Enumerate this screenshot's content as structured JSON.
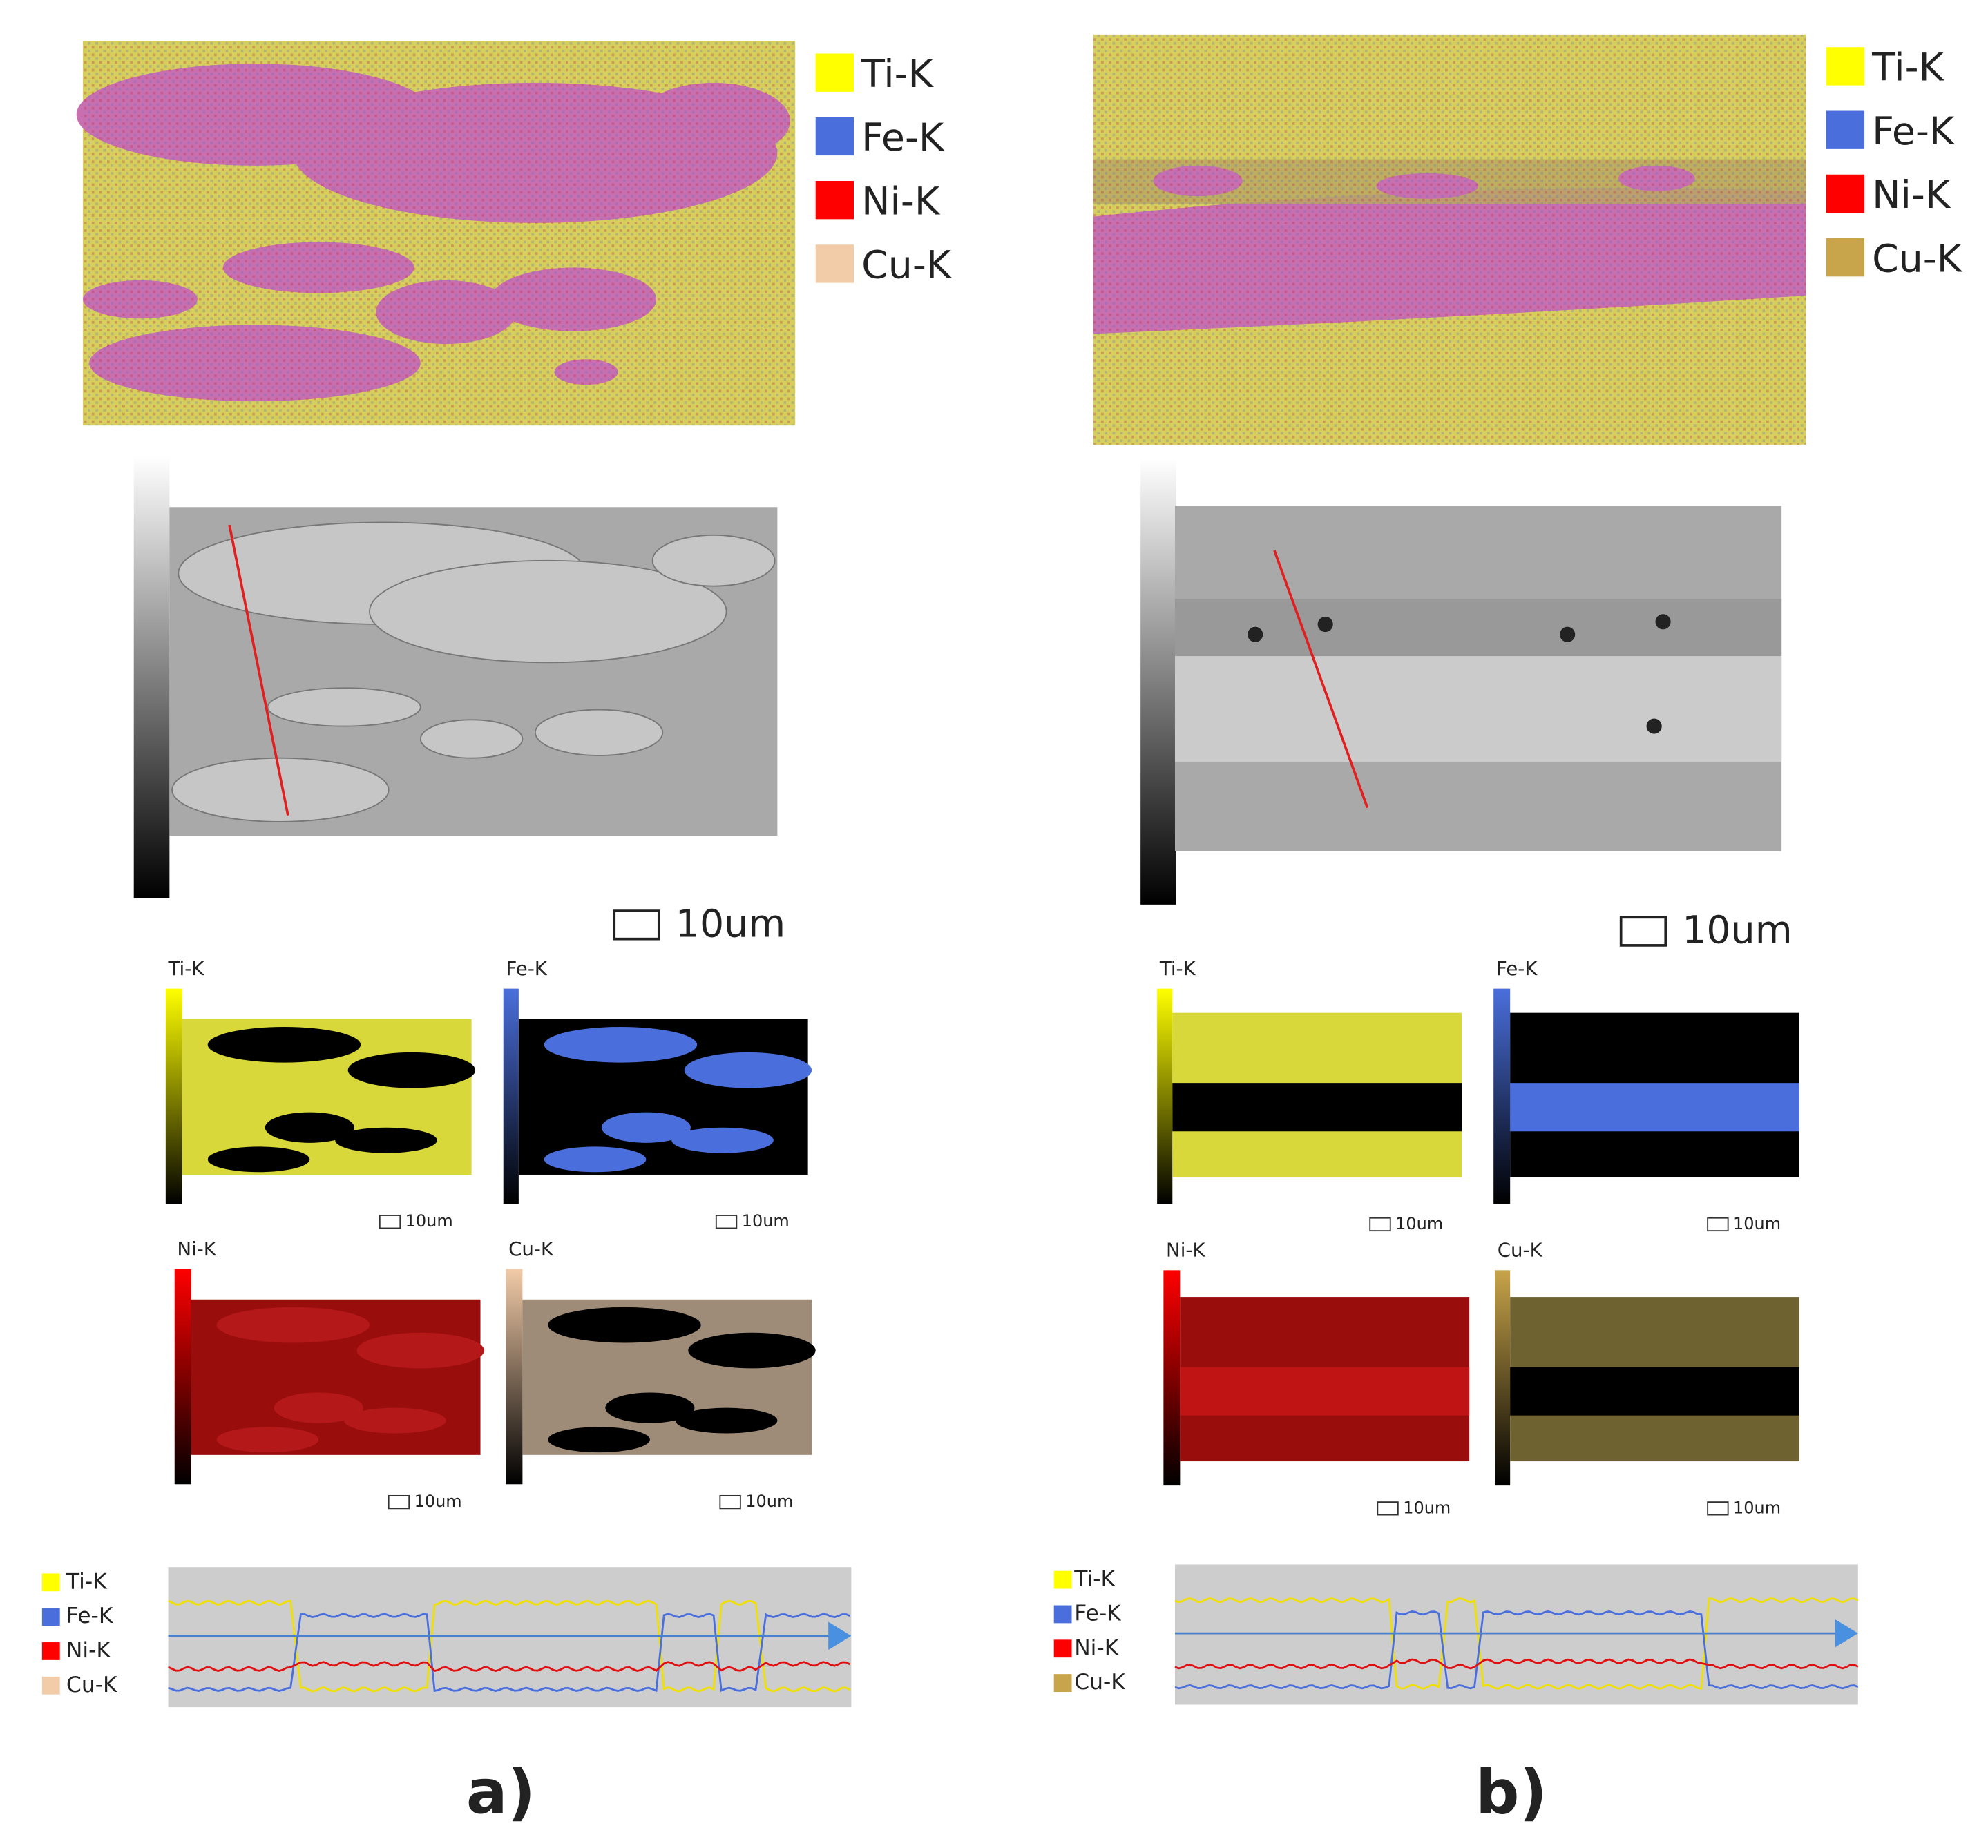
{
  "panels": [
    {
      "label": "a)",
      "legend": [
        "Ti-K",
        "Fe-K",
        "Ni-K",
        "Cu-K"
      ],
      "sem_scale": "10um",
      "maps": [
        {
          "label": "Ti-K",
          "scale": "10um"
        },
        {
          "label": "Fe-K",
          "scale": "10um"
        },
        {
          "label": "Ni-K",
          "scale": "10um"
        },
        {
          "label": "Cu-K",
          "scale": "10um"
        }
      ],
      "linescan_legend": [
        "Ti-K",
        "Fe-K",
        "Ni-K",
        "Cu-K"
      ]
    },
    {
      "label": "b)",
      "legend": [
        "Ti-K",
        "Fe-K",
        "Ni-K",
        "Cu-K"
      ],
      "sem_scale": "10um",
      "maps": [
        {
          "label": "Ti-K",
          "scale": "10um"
        },
        {
          "label": "Fe-K",
          "scale": "10um"
        },
        {
          "label": "Ni-K",
          "scale": "10um"
        },
        {
          "label": "Cu-K",
          "scale": "10um"
        }
      ],
      "linescan_legend": [
        "Ti-K",
        "Fe-K",
        "Ni-K",
        "Cu-K"
      ]
    }
  ]
}
